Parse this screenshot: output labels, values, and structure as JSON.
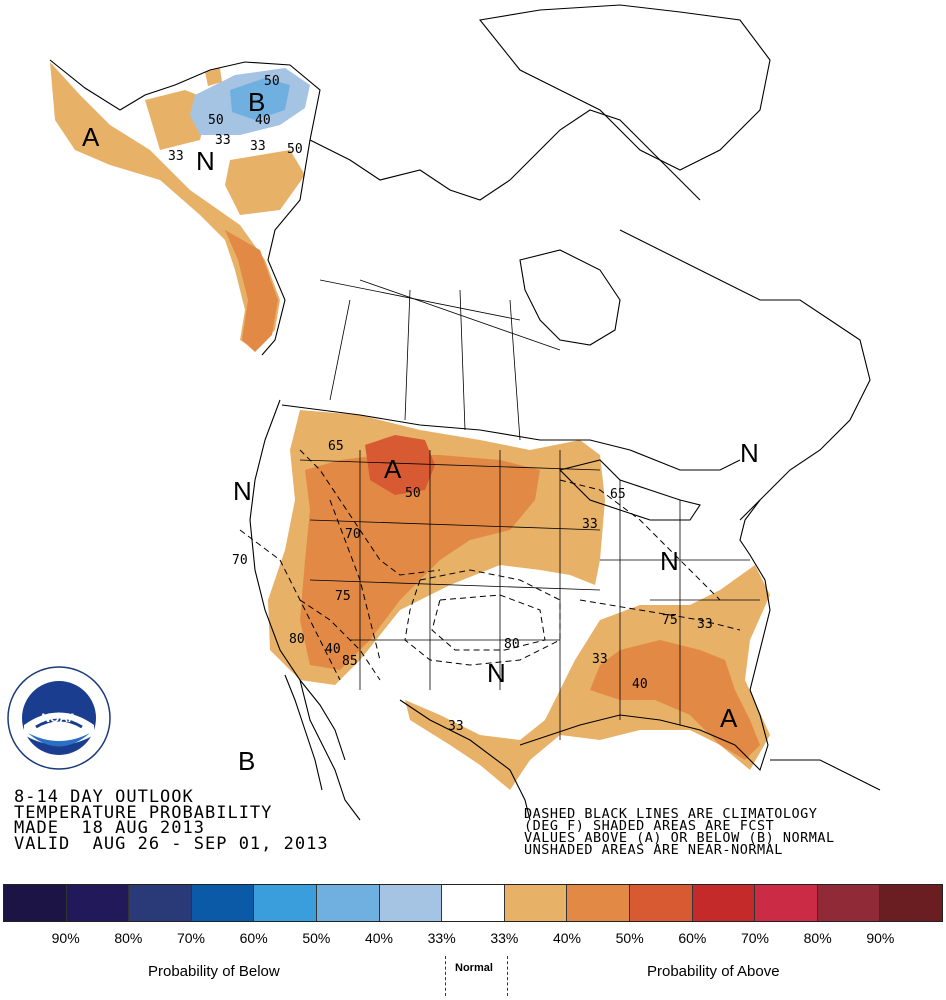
{
  "title": {
    "line1": "8-14 DAY OUTLOOK",
    "line2": "TEMPERATURE PROBABILITY",
    "line3": "MADE  18 AUG 2013",
    "line4": "VALID  AUG 26 - SEP 01, 2013"
  },
  "note": {
    "line1": "DASHED BLACK LINES ARE CLIMATOLOGY",
    "line2": "(DEG F) SHADED AREAS ARE FCST",
    "line3": "VALUES ABOVE (A) OR BELOW (B) NORMAL",
    "line4": "UNSHADED AREAS ARE NEAR-NORMAL"
  },
  "legend": {
    "colors": [
      "#1c1445",
      "#21195a",
      "#2a3a78",
      "#0a5aa8",
      "#3a9edc",
      "#6fb0e0",
      "#a5c3e3",
      "#ffffff",
      "#e8b168",
      "#e28a45",
      "#d85a32",
      "#c42a2a",
      "#cc2b46",
      "#8f2a36",
      "#6b1e22"
    ],
    "labels": [
      "90%",
      "80%",
      "70%",
      "60%",
      "50%",
      "40%",
      "33%",
      "33%",
      "40%",
      "50%",
      "60%",
      "70%",
      "80%",
      "90%"
    ],
    "below_caption": "Probability of Below",
    "normal_caption": "Normal",
    "above_caption": "Probability of Above"
  },
  "map_labels": {
    "A_alaska": "A",
    "N_alaska": "N",
    "B_alaska": "B",
    "A_west": "A",
    "A_florida": "A",
    "N_westcoast": "N",
    "N_southcentral": "N",
    "N_east": "N",
    "N_northeast": "N",
    "B_mexico": "B"
  },
  "contour_labels": {
    "c40_ak": "40",
    "c33_ak1": "33",
    "c33_ak2": "33",
    "c50_ak1": "50",
    "c50_ak2": "50",
    "c33_ak3": "33",
    "c50_nw": "50",
    "c65_mt": "65",
    "c70_ut": "70",
    "c70_ca": "70",
    "c75_nv": "75",
    "c80_az": "80",
    "c85_az": "85",
    "c40_az": "40",
    "c65_ne": "65",
    "c33_mi": "33",
    "c80_tx": "80",
    "c33_tx": "33",
    "c75_nc": "75",
    "c33_nc": "33",
    "c33_ga": "33",
    "c40_fl": "40"
  },
  "logo": {
    "text": "NOAA"
  }
}
